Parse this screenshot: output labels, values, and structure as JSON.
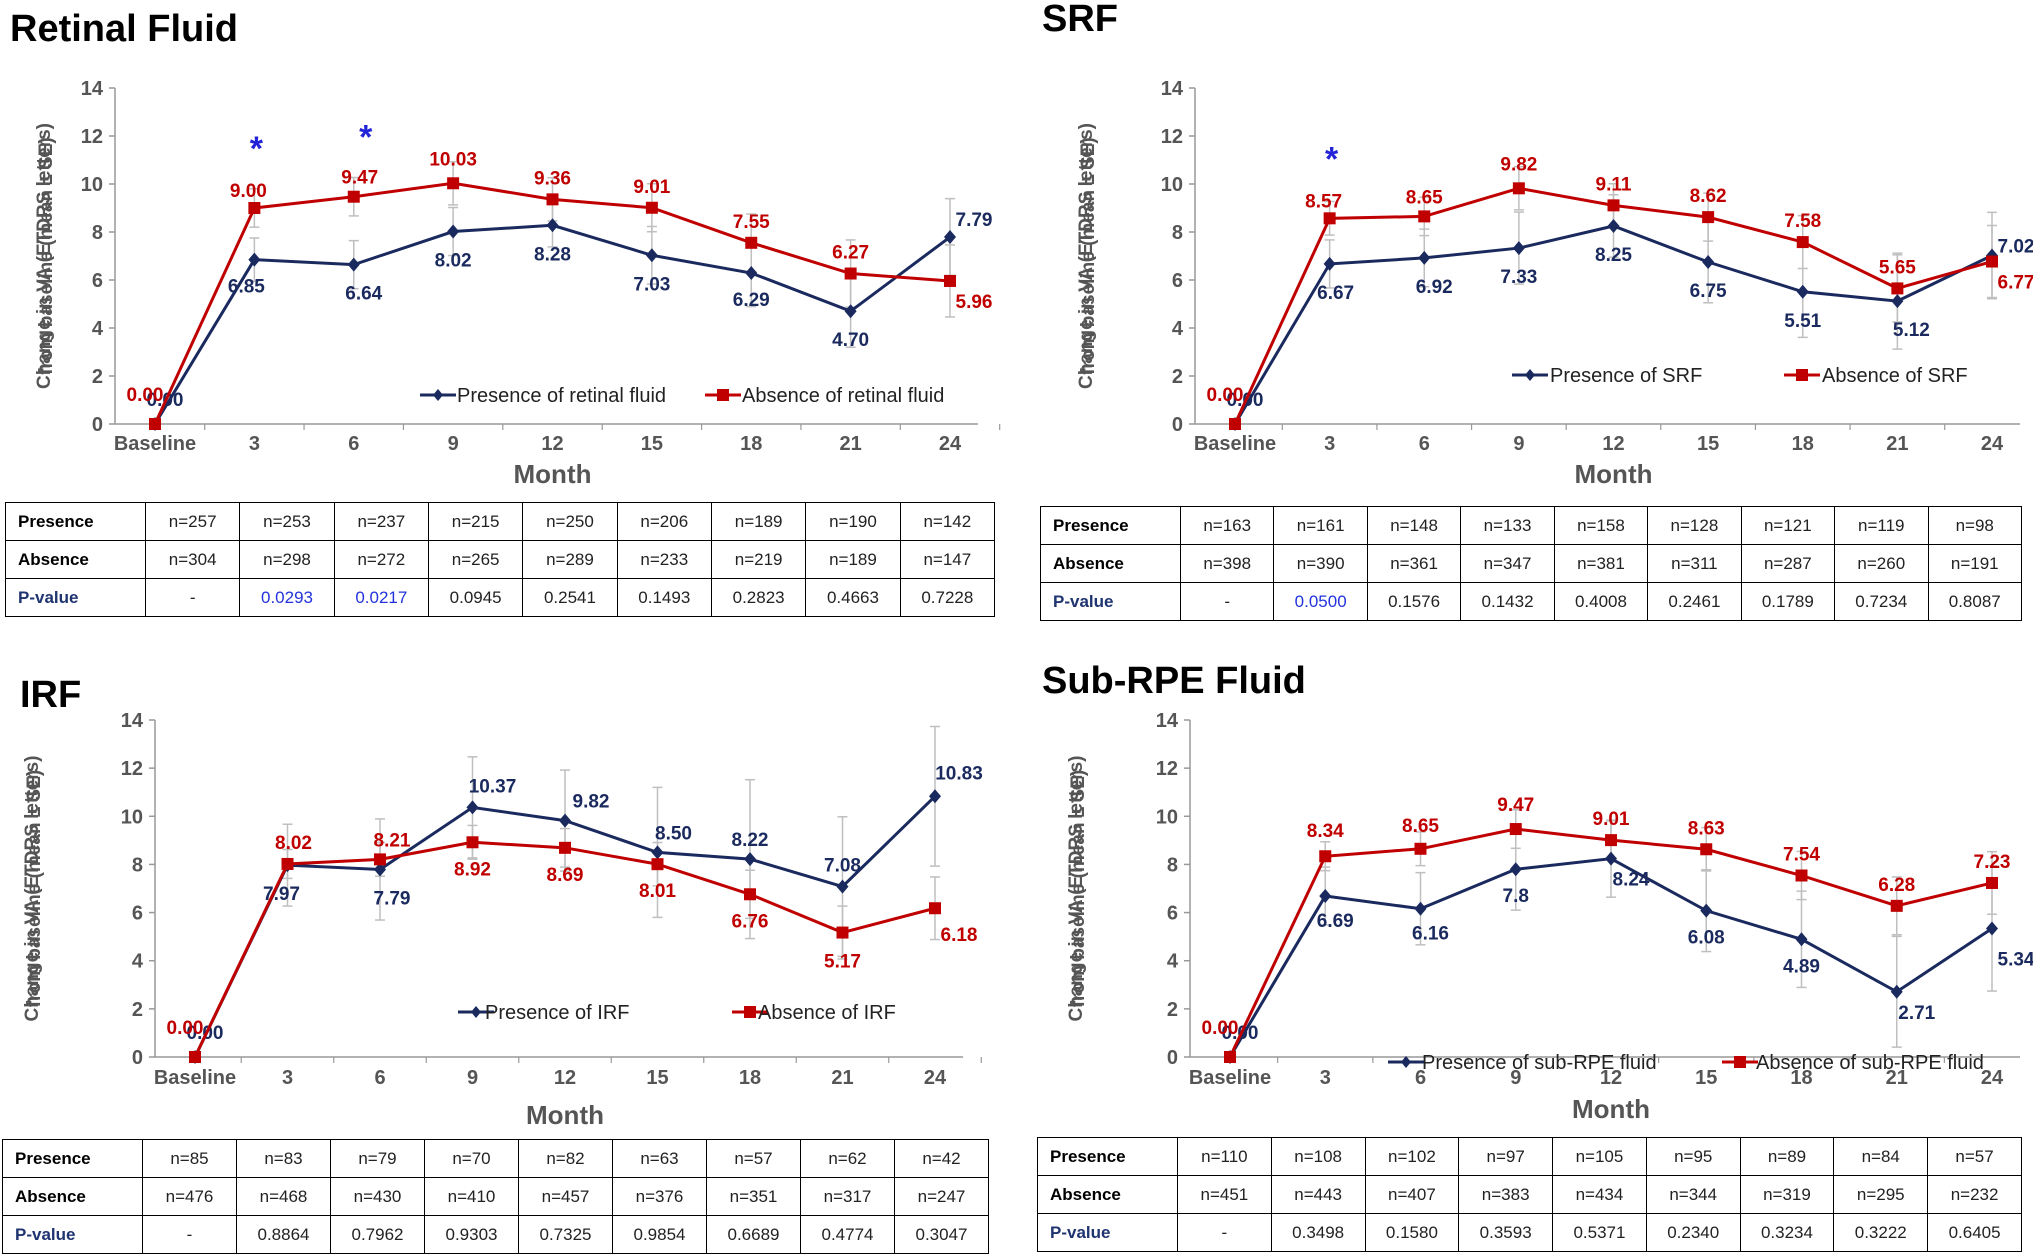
{
  "colors": {
    "presence": "#1a2a5e",
    "absence": "#c00000",
    "star": "#2323d8",
    "error": "#bfbfbf",
    "sig": "#2233dd"
  },
  "chart_data": [
    {
      "type": "line",
      "title": "Retinal Fluid",
      "xlabel": "Month",
      "ylabel_line1": "Change in VA (ETDRS letters)",
      "ylabel_line2": "from baseline (mean ± SE)",
      "ylim": [
        0,
        14
      ],
      "yticks": [
        "0",
        "2",
        "4",
        "6",
        "8",
        "10",
        "12",
        "14"
      ],
      "categories": [
        "Baseline",
        "3",
        "6",
        "9",
        "12",
        "15",
        "18",
        "21",
        "24"
      ],
      "series": [
        {
          "name": "Presence of retinal fluid",
          "key": "presence",
          "values": [
            0.0,
            6.85,
            6.64,
            8.02,
            8.28,
            7.03,
            6.29,
            4.7,
            7.79
          ],
          "labels": [
            "0.00",
            "6.85",
            "6.64",
            "8.02",
            "8.28",
            "7.03",
            "6.29",
            "4.70",
            "7.79"
          ],
          "se": [
            0,
            0.9,
            1.0,
            1.0,
            0.9,
            1.2,
            1.4,
            1.5,
            1.6
          ]
        },
        {
          "name": "Absence of retinal fluid",
          "key": "absence",
          "values": [
            0.0,
            9.0,
            9.47,
            10.03,
            9.36,
            9.01,
            7.55,
            6.27,
            5.96
          ],
          "labels": [
            "0.00",
            "9.00",
            "9.47",
            "10.03",
            "9.36",
            "9.01",
            "7.55",
            "6.27",
            "5.96"
          ],
          "se": [
            0,
            0.8,
            0.8,
            0.9,
            0.9,
            1.0,
            1.2,
            1.4,
            1.5
          ]
        }
      ],
      "stars": [
        "3",
        "6"
      ],
      "table": {
        "rows": [
          {
            "label": "Presence",
            "cells": [
              "n=257",
              "n=253",
              "n=237",
              "n=215",
              "n=250",
              "n=206",
              "n=189",
              "n=190",
              "n=142"
            ]
          },
          {
            "label": "Absence",
            "cells": [
              "n=304",
              "n=298",
              "n=272",
              "n=265",
              "n=289",
              "n=233",
              "n=219",
              "n=189",
              "n=147"
            ]
          },
          {
            "label": "P-value",
            "cells": [
              "-",
              "0.0293",
              "0.0217",
              "0.0945",
              "0.2541",
              "0.1493",
              "0.2823",
              "0.4663",
              "0.7228"
            ],
            "sig": [
              1,
              2
            ]
          }
        ]
      }
    },
    {
      "type": "line",
      "title": "SRF",
      "xlabel": "Month",
      "ylabel_line1": "Change in VA (ETDRS letters)",
      "ylabel_line2": "from baseline (mean ± SE)",
      "ylim": [
        0,
        14
      ],
      "yticks": [
        "0",
        "2",
        "4",
        "6",
        "8",
        "10",
        "12",
        "14"
      ],
      "categories": [
        "Baseline",
        "3",
        "6",
        "9",
        "12",
        "15",
        "18",
        "21",
        "24"
      ],
      "series": [
        {
          "name": "Presence of SRF",
          "key": "presence",
          "values": [
            0.0,
            6.67,
            6.92,
            7.33,
            8.25,
            6.75,
            5.51,
            5.12,
            7.02
          ],
          "labels": [
            "0.00",
            "6.67",
            "6.92",
            "7.33",
            "8.25",
            "6.75",
            "5.51",
            "5.12",
            "7.02"
          ],
          "se": [
            0,
            1.0,
            1.2,
            1.5,
            1.3,
            1.7,
            1.9,
            2.0,
            1.8
          ]
        },
        {
          "name": "Absence of SRF",
          "key": "absence",
          "values": [
            0.0,
            8.57,
            8.65,
            9.82,
            9.11,
            8.62,
            7.58,
            5.65,
            6.77
          ],
          "labels": [
            "0.00",
            "8.57",
            "8.65",
            "9.82",
            "9.11",
            "8.62",
            "7.58",
            "5.65",
            "6.77"
          ],
          "se": [
            0,
            0.7,
            0.8,
            0.9,
            0.9,
            1.0,
            1.1,
            1.4,
            1.5
          ]
        }
      ],
      "stars": [
        "3"
      ],
      "table": {
        "rows": [
          {
            "label": "Presence",
            "cells": [
              "n=163",
              "n=161",
              "n=148",
              "n=133",
              "n=158",
              "n=128",
              "n=121",
              "n=119",
              "n=98"
            ]
          },
          {
            "label": "Absence",
            "cells": [
              "n=398",
              "n=390",
              "n=361",
              "n=347",
              "n=381",
              "n=311",
              "n=287",
              "n=260",
              "n=191"
            ]
          },
          {
            "label": "P-value",
            "cells": [
              "-",
              "0.0500",
              "0.1576",
              "0.1432",
              "0.4008",
              "0.2461",
              "0.1789",
              "0.7234",
              "0.8087"
            ],
            "sig": [
              1
            ]
          }
        ]
      }
    },
    {
      "type": "line",
      "title": "IRF",
      "xlabel": "Month",
      "ylabel_line1": "Change in VA (ETDRS letters)",
      "ylabel_line2": "from baseline (mean ± SE)",
      "ylim": [
        0,
        14
      ],
      "yticks": [
        "0",
        "2",
        "4",
        "6",
        "8",
        "10",
        "12",
        "14"
      ],
      "categories": [
        "Baseline",
        "3",
        "6",
        "9",
        "12",
        "15",
        "18",
        "21",
        "24"
      ],
      "series": [
        {
          "name": "Presence of IRF",
          "key": "presence",
          "values": [
            0.0,
            7.97,
            7.79,
            10.37,
            9.82,
            8.5,
            8.22,
            7.08,
            10.83
          ],
          "labels": [
            "0.00",
            "7.97",
            "7.79",
            "10.37",
            "9.82",
            "8.50",
            "8.22",
            "7.08",
            "10.83"
          ],
          "se": [
            0,
            1.7,
            2.1,
            2.1,
            2.1,
            2.7,
            3.3,
            2.9,
            2.9
          ]
        },
        {
          "name": "Absence of IRF",
          "key": "absence",
          "values": [
            0.0,
            8.02,
            8.21,
            8.92,
            8.69,
            8.01,
            6.76,
            5.17,
            6.18
          ],
          "labels": [
            "0.00",
            "8.02",
            "8.21",
            "8.92",
            "8.69",
            "8.01",
            "6.76",
            "5.17",
            "6.18"
          ],
          "se": [
            0,
            0.6,
            0.7,
            0.7,
            0.8,
            0.9,
            1.0,
            1.1,
            1.3
          ]
        }
      ],
      "stars": [],
      "table": {
        "rows": [
          {
            "label": "Presence",
            "cells": [
              "n=85",
              "n=83",
              "n=79",
              "n=70",
              "n=82",
              "n=63",
              "n=57",
              "n=62",
              "n=42"
            ]
          },
          {
            "label": "Absence",
            "cells": [
              "n=476",
              "n=468",
              "n=430",
              "n=410",
              "n=457",
              "n=376",
              "n=351",
              "n=317",
              "n=247"
            ]
          },
          {
            "label": "P-value",
            "cells": [
              "-",
              "0.8864",
              "0.7962",
              "0.9303",
              "0.7325",
              "0.9854",
              "0.6689",
              "0.4774",
              "0.3047"
            ],
            "sig": []
          }
        ]
      }
    },
    {
      "type": "line",
      "title": "Sub-RPE Fluid",
      "xlabel": "Month",
      "ylabel_line1": "Change in VA (ETDRS letters)",
      "ylabel_line2": "from baseline (mean ± SE)",
      "ylim": [
        0,
        14
      ],
      "yticks": [
        "0",
        "2",
        "4",
        "6",
        "8",
        "10",
        "12",
        "14"
      ],
      "categories": [
        "Baseline",
        "3",
        "6",
        "9",
        "12",
        "15",
        "18",
        "21",
        "24"
      ],
      "series": [
        {
          "name": "Presence of sub-RPE fluid",
          "key": "presence",
          "values": [
            0.0,
            6.69,
            6.16,
            7.8,
            8.24,
            6.08,
            4.89,
            2.71,
            5.34
          ],
          "labels": [
            "0.00",
            "6.69",
            "6.16",
            "7.8",
            "8.24",
            "6.08",
            "4.89",
            "2.71",
            "5.34"
          ],
          "se": [
            0,
            1.2,
            1.5,
            1.7,
            1.6,
            1.7,
            2.0,
            2.3,
            2.6
          ]
        },
        {
          "name": "Absence of sub-RPE fluid",
          "key": "absence",
          "values": [
            0.0,
            8.34,
            8.65,
            9.47,
            9.01,
            8.63,
            7.54,
            6.28,
            7.23
          ],
          "labels": [
            "0.00",
            "8.34",
            "8.65",
            "9.47",
            "9.01",
            "8.63",
            "7.54",
            "6.28",
            "7.23"
          ],
          "se": [
            0,
            0.6,
            0.7,
            0.8,
            0.8,
            0.9,
            1.0,
            1.2,
            1.3
          ]
        }
      ],
      "stars": [],
      "table": {
        "rows": [
          {
            "label": "Presence",
            "cells": [
              "n=110",
              "n=108",
              "n=102",
              "n=97",
              "n=105",
              "n=95",
              "n=89",
              "n=84",
              "n=57"
            ]
          },
          {
            "label": "Absence",
            "cells": [
              "n=451",
              "n=443",
              "n=407",
              "n=383",
              "n=434",
              "n=344",
              "n=319",
              "n=295",
              "n=232"
            ]
          },
          {
            "label": "P-value",
            "cells": [
              "-",
              "0.3498",
              "0.1580",
              "0.3593",
              "0.5371",
              "0.2340",
              "0.3234",
              "0.3222",
              "0.6405"
            ],
            "sig": []
          }
        ]
      }
    }
  ]
}
